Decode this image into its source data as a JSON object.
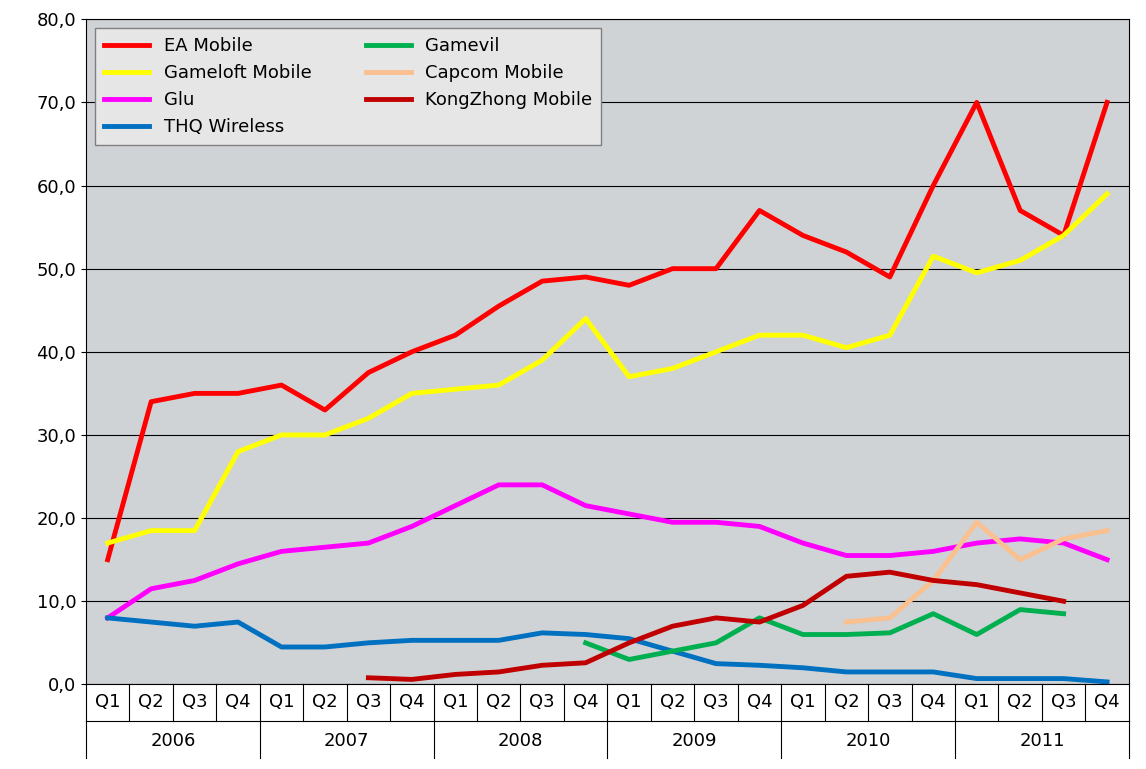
{
  "chart_data": {
    "type": "line",
    "categories": [
      "Q1",
      "Q2",
      "Q3",
      "Q4",
      "Q1",
      "Q2",
      "Q3",
      "Q4",
      "Q1",
      "Q2",
      "Q3",
      "Q4",
      "Q1",
      "Q2",
      "Q3",
      "Q4",
      "Q1",
      "Q2",
      "Q3",
      "Q4",
      "Q1",
      "Q2",
      "Q3",
      "Q4"
    ],
    "years": [
      "2006",
      "2007",
      "2008",
      "2009",
      "2010",
      "2011"
    ],
    "series": [
      {
        "name": "EA Mobile",
        "color": "#ff0000",
        "values": [
          15,
          34,
          35,
          35,
          36,
          33,
          37.5,
          40,
          42,
          45.5,
          48.5,
          49,
          48,
          50,
          50,
          57,
          54,
          52,
          49,
          60,
          70,
          57,
          54,
          70
        ]
      },
      {
        "name": "Gameloft Mobile",
        "color": "#ffff00",
        "values": [
          17,
          18.5,
          18.5,
          28,
          30,
          30,
          32,
          35,
          35.5,
          36,
          39,
          44,
          37,
          38,
          40,
          42,
          42,
          40.5,
          42,
          51.5,
          49.5,
          51,
          54,
          59
        ]
      },
      {
        "name": "Glu",
        "color": "#ff00ff",
        "values": [
          8,
          11.5,
          12.5,
          14.5,
          16,
          16.5,
          17,
          19,
          21.5,
          24,
          24,
          21.5,
          20.5,
          19.5,
          19.5,
          19,
          17,
          15.5,
          15.5,
          16,
          17,
          17.5,
          17,
          15
        ]
      },
      {
        "name": "THQ Wireless",
        "color": "#0070c0",
        "values": [
          8,
          7.5,
          7,
          7.5,
          4.5,
          4.5,
          5,
          5.3,
          5.3,
          5.3,
          6.2,
          6,
          5.5,
          4,
          2.5,
          2.3,
          2,
          1.5,
          1.5,
          1.5,
          0.7,
          0.7,
          0.7,
          0.3
        ]
      },
      {
        "name": "Gamevil",
        "color": "#00b050",
        "values": [
          null,
          null,
          null,
          null,
          null,
          null,
          null,
          null,
          null,
          null,
          null,
          5,
          3,
          4,
          5,
          8,
          6,
          6,
          6.2,
          8.5,
          6,
          9,
          8.5,
          null
        ]
      },
      {
        "name": "Capcom Mobile",
        "color": "#fac090",
        "values": [
          null,
          null,
          null,
          null,
          null,
          null,
          null,
          null,
          null,
          null,
          null,
          null,
          null,
          null,
          null,
          null,
          null,
          7.5,
          8,
          12.5,
          19.5,
          15,
          17.5,
          18.5
        ]
      },
      {
        "name": "KongZhong Mobile",
        "color": "#c00000",
        "values": [
          null,
          null,
          null,
          null,
          null,
          null,
          0.8,
          0.6,
          1.2,
          1.5,
          2.3,
          2.6,
          5,
          7,
          8,
          7.5,
          9.5,
          13,
          13.5,
          12.5,
          12,
          11,
          10,
          null
        ]
      }
    ],
    "ylim": [
      0,
      80
    ],
    "yticks": [
      {
        "value": 0,
        "label": "0,0"
      },
      {
        "value": 10,
        "label": "10,0"
      },
      {
        "value": 20,
        "label": "20,0"
      },
      {
        "value": 30,
        "label": "30,0"
      },
      {
        "value": 40,
        "label": "40,0"
      },
      {
        "value": 50,
        "label": "50,0"
      },
      {
        "value": 60,
        "label": "60,0"
      },
      {
        "value": 70,
        "label": "70,0"
      },
      {
        "value": 80,
        "label": "80,0"
      }
    ],
    "grid": true,
    "legend": "upper left"
  }
}
